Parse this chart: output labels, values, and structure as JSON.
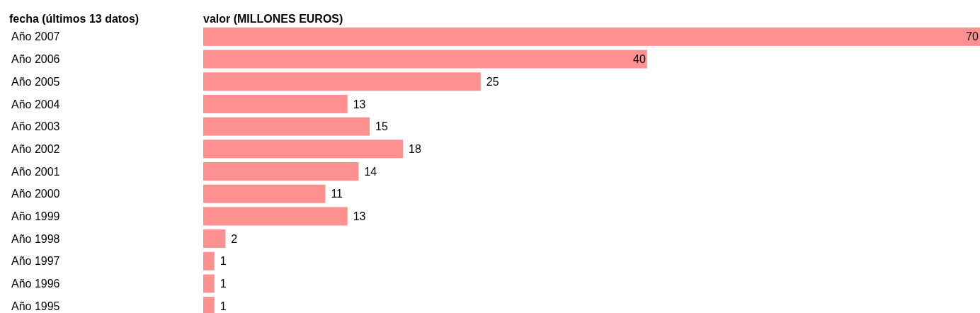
{
  "chart_data": {
    "type": "bar",
    "orientation": "horizontal",
    "ylabel": "fecha (últimos 13 datos)",
    "xlabel": "valor (MILLONES EUROS)",
    "categories": [
      "Año 2007",
      "Año 2006",
      "Año 2005",
      "Año 2004",
      "Año 2003",
      "Año 2002",
      "Año 2001",
      "Año 2000",
      "Año 1999",
      "Año 1998",
      "Año 1997",
      "Año 1996",
      "Año 1995"
    ],
    "values": [
      70,
      40,
      25,
      13,
      15,
      18,
      14,
      11,
      13,
      2,
      1,
      1,
      1
    ],
    "color": "#ff9090",
    "data_labels": true
  }
}
